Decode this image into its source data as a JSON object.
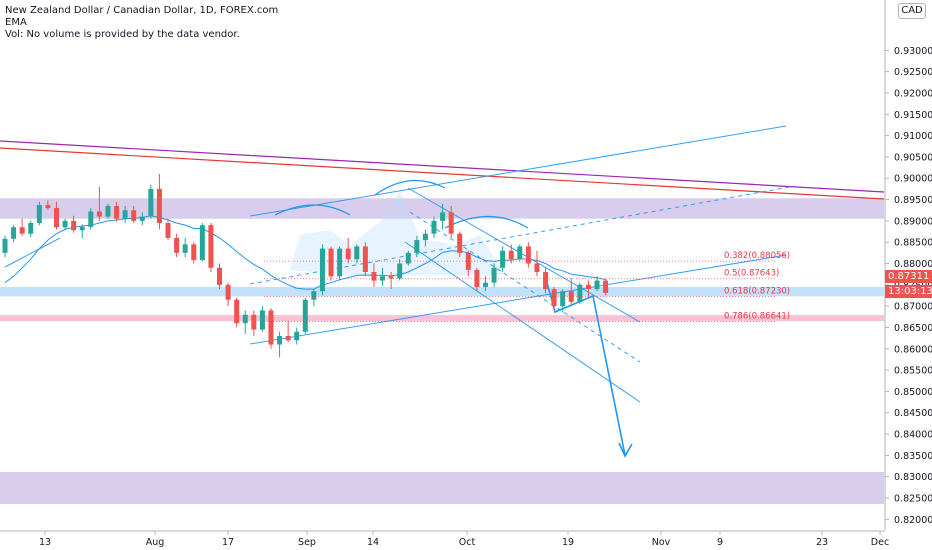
{
  "legend": {
    "title": "New Zealand Dollar / Canadian Dollar, 1D, FOREX.com",
    "indicator": "EMA",
    "volume_note": "Vol: No volume is provided by the data vendor."
  },
  "currency": "CAD",
  "last_price": "0.87311",
  "countdown": "13:03:13",
  "colors": {
    "up_candle": "#26a69a",
    "down_candle": "#ef5350",
    "ema": "#2196f3",
    "trendline": "#2196f3",
    "fib_label": "#f23645",
    "resistance_zone": "#d1c4e9",
    "support_zone_blue": "#bbdefb",
    "support_zone_red": "#f8bbd0",
    "purple_line": "#9c27b0",
    "red_line": "#e53935"
  },
  "chart_data": {
    "type": "candlestick",
    "symbol": "NZDCAD",
    "timeframe": "1D",
    "ylim": [
      0.8175,
      0.9418
    ],
    "y_ticks": [
      "0.93000",
      "0.92500",
      "0.92000",
      "0.91500",
      "0.91000",
      "0.90500",
      "0.90000",
      "0.89500",
      "0.89000",
      "0.88500",
      "0.88000",
      "0.87500",
      "0.87000",
      "0.86500",
      "0.86000",
      "0.85500",
      "0.85000",
      "0.84500",
      "0.84000",
      "0.83500",
      "0.83000",
      "0.82500",
      "0.82000"
    ],
    "x_ticks": [
      "13",
      "Aug",
      "17",
      "Sep",
      "14",
      "Oct",
      "19",
      "Nov",
      "9",
      "23",
      "Dec"
    ],
    "fib_levels": [
      {
        "label": "0.382(0.88056)",
        "value": 0.88056
      },
      {
        "label": "0.5(0.87643)",
        "value": 0.87643
      },
      {
        "label": "0.618(0.87230)",
        "value": 0.8723
      },
      {
        "label": "0.786(0.86641)",
        "value": 0.86641
      }
    ],
    "zones": [
      {
        "name": "upper-resistance-zone",
        "from": 0.8905,
        "to": 0.8953
      },
      {
        "name": "blue-support-zone",
        "from": 0.8723,
        "to": 0.8745
      },
      {
        "name": "red-support-zone",
        "from": 0.8665,
        "to": 0.8679
      },
      {
        "name": "lower-target-zone",
        "from": 0.8236,
        "to": 0.8311
      }
    ],
    "candles": [
      [
        0.8825,
        0.8865,
        0.8815,
        0.8858
      ],
      [
        0.8858,
        0.889,
        0.885,
        0.8885
      ],
      [
        0.8885,
        0.8905,
        0.8865,
        0.887
      ],
      [
        0.887,
        0.89,
        0.8862,
        0.8895
      ],
      [
        0.8895,
        0.8945,
        0.889,
        0.8937
      ],
      [
        0.8937,
        0.8948,
        0.8925,
        0.893
      ],
      [
        0.893,
        0.8945,
        0.888,
        0.8885
      ],
      [
        0.8885,
        0.8905,
        0.8878,
        0.89
      ],
      [
        0.89,
        0.8912,
        0.8872,
        0.8878
      ],
      [
        0.8878,
        0.8892,
        0.886,
        0.8886
      ],
      [
        0.8886,
        0.893,
        0.888,
        0.8922
      ],
      [
        0.8922,
        0.898,
        0.89,
        0.891
      ],
      [
        0.891,
        0.894,
        0.8905,
        0.8935
      ],
      [
        0.8935,
        0.8945,
        0.8898,
        0.8905
      ],
      [
        0.8905,
        0.8935,
        0.8895,
        0.8925
      ],
      [
        0.8925,
        0.8935,
        0.8895,
        0.89
      ],
      [
        0.89,
        0.892,
        0.889,
        0.891
      ],
      [
        0.891,
        0.8985,
        0.8905,
        0.8975
      ],
      [
        0.8975,
        0.901,
        0.888,
        0.8895
      ],
      [
        0.8895,
        0.8905,
        0.8855,
        0.886
      ],
      [
        0.886,
        0.887,
        0.8815,
        0.8825
      ],
      [
        0.8825,
        0.886,
        0.8815,
        0.8845
      ],
      [
        0.8845,
        0.885,
        0.88,
        0.8808
      ],
      [
        0.8808,
        0.8895,
        0.8805,
        0.889
      ],
      [
        0.889,
        0.8895,
        0.878,
        0.879
      ],
      [
        0.879,
        0.88,
        0.874,
        0.875
      ],
      [
        0.875,
        0.8755,
        0.87,
        0.8715
      ],
      [
        0.8715,
        0.872,
        0.865,
        0.866
      ],
      [
        0.866,
        0.869,
        0.8635,
        0.868
      ],
      [
        0.868,
        0.869,
        0.863,
        0.8645
      ],
      [
        0.8645,
        0.87,
        0.864,
        0.869
      ],
      [
        0.869,
        0.8695,
        0.86,
        0.861
      ],
      [
        0.861,
        0.864,
        0.858,
        0.863
      ],
      [
        0.863,
        0.8665,
        0.8615,
        0.862
      ],
      [
        0.862,
        0.865,
        0.861,
        0.864
      ],
      [
        0.864,
        0.872,
        0.8635,
        0.8715
      ],
      [
        0.8715,
        0.874,
        0.87,
        0.8735
      ],
      [
        0.8735,
        0.8845,
        0.8725,
        0.8835
      ],
      [
        0.8835,
        0.884,
        0.876,
        0.877
      ],
      [
        0.877,
        0.884,
        0.876,
        0.8835
      ],
      [
        0.8835,
        0.886,
        0.88,
        0.881
      ],
      [
        0.881,
        0.8845,
        0.88,
        0.884
      ],
      [
        0.884,
        0.885,
        0.877,
        0.878
      ],
      [
        0.878,
        0.88,
        0.8745,
        0.876
      ],
      [
        0.876,
        0.879,
        0.8748,
        0.877
      ],
      [
        0.877,
        0.878,
        0.874,
        0.8765
      ],
      [
        0.8765,
        0.881,
        0.876,
        0.88
      ],
      [
        0.88,
        0.883,
        0.8795,
        0.8825
      ],
      [
        0.8825,
        0.8865,
        0.8815,
        0.8855
      ],
      [
        0.8855,
        0.888,
        0.884,
        0.887
      ],
      [
        0.887,
        0.891,
        0.886,
        0.89
      ],
      [
        0.89,
        0.894,
        0.888,
        0.892
      ],
      [
        0.892,
        0.8935,
        0.886,
        0.887
      ],
      [
        0.887,
        0.8875,
        0.8815,
        0.8825
      ],
      [
        0.8825,
        0.883,
        0.877,
        0.8785
      ],
      [
        0.8785,
        0.879,
        0.8735,
        0.8745
      ],
      [
        0.8745,
        0.877,
        0.8735,
        0.8755
      ],
      [
        0.8755,
        0.88,
        0.8745,
        0.879
      ],
      [
        0.879,
        0.884,
        0.878,
        0.883
      ],
      [
        0.883,
        0.8845,
        0.88,
        0.881
      ],
      [
        0.881,
        0.8845,
        0.8805,
        0.884
      ],
      [
        0.884,
        0.885,
        0.879,
        0.88
      ],
      [
        0.88,
        0.883,
        0.877,
        0.878
      ],
      [
        0.878,
        0.879,
        0.873,
        0.874
      ],
      [
        0.874,
        0.8745,
        0.869,
        0.87
      ],
      [
        0.87,
        0.874,
        0.8685,
        0.8735
      ],
      [
        0.8735,
        0.8765,
        0.87,
        0.871
      ],
      [
        0.871,
        0.8755,
        0.8705,
        0.875
      ],
      [
        0.875,
        0.876,
        0.872,
        0.874
      ],
      [
        0.874,
        0.877,
        0.8735,
        0.876
      ],
      [
        0.876,
        0.8765,
        0.8725,
        0.8731
      ]
    ],
    "ema": [
      0.8755,
      0.877,
      0.879,
      0.881,
      0.8835,
      0.8855,
      0.887,
      0.888,
      0.8885,
      0.8888,
      0.889,
      0.8895,
      0.89,
      0.8902,
      0.8905,
      0.8906,
      0.8908,
      0.8912,
      0.8908,
      0.8902,
      0.8895,
      0.889,
      0.8882,
      0.8882,
      0.8872,
      0.886,
      0.8845,
      0.8828,
      0.8812,
      0.8798,
      0.8787,
      0.8772,
      0.876,
      0.875,
      0.8742,
      0.874,
      0.874,
      0.875,
      0.8755,
      0.8762,
      0.8767,
      0.8772,
      0.8773,
      0.8772,
      0.8772,
      0.8771,
      0.8774,
      0.878,
      0.879,
      0.88,
      0.8812,
      0.8826,
      0.883,
      0.8829,
      0.8825,
      0.8815,
      0.8807,
      0.8805,
      0.8808,
      0.8808,
      0.8811,
      0.881,
      0.8807,
      0.88,
      0.8788,
      0.8783,
      0.8775,
      0.8772,
      0.8769,
      0.8767,
      0.8762
    ]
  }
}
